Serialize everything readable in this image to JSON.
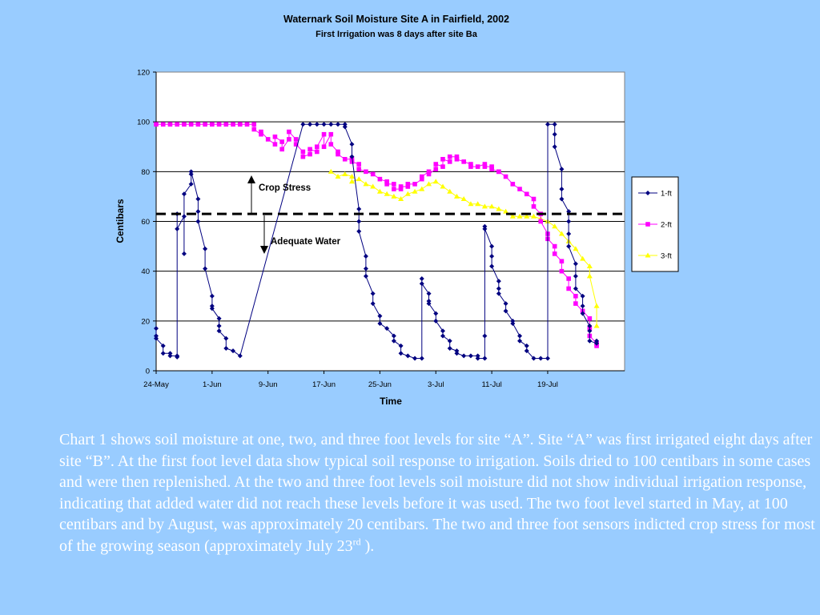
{
  "chart_data": {
    "type": "line",
    "title": "Waternark Soil Moisture Site A in Fairfield, 2002",
    "subtitle": "First Irrigation was 8 days after site Ba",
    "xlabel": "Time",
    "ylabel": "Centibars",
    "ylim": [
      0,
      120
    ],
    "yticks": [
      0,
      20,
      40,
      60,
      80,
      100,
      120
    ],
    "xlim": [
      "2002-05-24",
      "2002-07-30"
    ],
    "xticks": [
      {
        "date": "2002-05-24",
        "label": "24-May"
      },
      {
        "date": "2002-06-01",
        "label": "1-Jun"
      },
      {
        "date": "2002-06-09",
        "label": "9-Jun"
      },
      {
        "date": "2002-06-17",
        "label": "17-Jun"
      },
      {
        "date": "2002-06-25",
        "label": "25-Jun"
      },
      {
        "date": "2002-07-03",
        "label": "3-Jul"
      },
      {
        "date": "2002-07-11",
        "label": "11-Jul"
      },
      {
        "date": "2002-07-19",
        "label": "19-Jul"
      }
    ],
    "grid": true,
    "legend_position": "right",
    "threshold": {
      "y": 63,
      "style": "dashed"
    },
    "annotations": {
      "upper": "Crop Stress",
      "lower": "Adequate Water"
    },
    "series": [
      {
        "name": "1-ft",
        "color": "#000080",
        "marker": "diamond",
        "points": [
          [
            "2002-05-24",
            17
          ],
          [
            "2002-05-24",
            14
          ],
          [
            "2002-05-24",
            13
          ],
          [
            "2002-05-25",
            10
          ],
          [
            "2002-05-25",
            7
          ],
          [
            "2002-05-26",
            7
          ],
          [
            "2002-05-26",
            6
          ],
          [
            "2002-05-27",
            6
          ],
          [
            "2002-05-27",
            5.5
          ],
          [
            "2002-05-27",
            63
          ],
          [
            "2002-05-27",
            57
          ],
          [
            "2002-05-28",
            62
          ],
          [
            "2002-05-28",
            47
          ],
          [
            "2002-05-28",
            71
          ],
          [
            "2002-05-29",
            75
          ],
          [
            "2002-05-29",
            79
          ],
          [
            "2002-05-29",
            80
          ],
          [
            "2002-05-30",
            69
          ],
          [
            "2002-05-30",
            64
          ],
          [
            "2002-05-30",
            60
          ],
          [
            "2002-05-31",
            49
          ],
          [
            "2002-05-31",
            41
          ],
          [
            "2002-06-01",
            30
          ],
          [
            "2002-06-01",
            26
          ],
          [
            "2002-06-01",
            25
          ],
          [
            "2002-06-02",
            21
          ],
          [
            "2002-06-02",
            18
          ],
          [
            "2002-06-02",
            16
          ],
          [
            "2002-06-03",
            13
          ],
          [
            "2002-06-03",
            9
          ],
          [
            "2002-06-04",
            8
          ],
          [
            "2002-06-05",
            6
          ],
          [
            "2002-06-14",
            99
          ],
          [
            "2002-06-15",
            99
          ],
          [
            "2002-06-16",
            99
          ],
          [
            "2002-06-17",
            99
          ],
          [
            "2002-06-18",
            99
          ],
          [
            "2002-06-19",
            99
          ],
          [
            "2002-06-20",
            99
          ],
          [
            "2002-06-20",
            98
          ],
          [
            "2002-06-21",
            91
          ],
          [
            "2002-06-21",
            86
          ],
          [
            "2002-06-22",
            65
          ],
          [
            "2002-06-22",
            60
          ],
          [
            "2002-06-22",
            56
          ],
          [
            "2002-06-23",
            46
          ],
          [
            "2002-06-23",
            41
          ],
          [
            "2002-06-23",
            38
          ],
          [
            "2002-06-24",
            31
          ],
          [
            "2002-06-24",
            27
          ],
          [
            "2002-06-25",
            22
          ],
          [
            "2002-06-25",
            19
          ],
          [
            "2002-06-26",
            17
          ],
          [
            "2002-06-27",
            14
          ],
          [
            "2002-06-27",
            12
          ],
          [
            "2002-06-28",
            10
          ],
          [
            "2002-06-28",
            7
          ],
          [
            "2002-06-29",
            6
          ],
          [
            "2002-06-30",
            5
          ],
          [
            "2002-07-01",
            5
          ],
          [
            "2002-07-01",
            37
          ],
          [
            "2002-07-01",
            35
          ],
          [
            "2002-07-02",
            31
          ],
          [
            "2002-07-02",
            28
          ],
          [
            "2002-07-02",
            27
          ],
          [
            "2002-07-03",
            23
          ],
          [
            "2002-07-03",
            20
          ],
          [
            "2002-07-04",
            16
          ],
          [
            "2002-07-04",
            14
          ],
          [
            "2002-07-05",
            12
          ],
          [
            "2002-07-05",
            9
          ],
          [
            "2002-07-06",
            8
          ],
          [
            "2002-07-06",
            7
          ],
          [
            "2002-07-07",
            6
          ],
          [
            "2002-07-08",
            6
          ],
          [
            "2002-07-09",
            6
          ],
          [
            "2002-07-09",
            5
          ],
          [
            "2002-07-10",
            5
          ],
          [
            "2002-07-10",
            14
          ],
          [
            "2002-07-10",
            58
          ],
          [
            "2002-07-10",
            57
          ],
          [
            "2002-07-11",
            50
          ],
          [
            "2002-07-11",
            46
          ],
          [
            "2002-07-11",
            42
          ],
          [
            "2002-07-12",
            36
          ],
          [
            "2002-07-12",
            33
          ],
          [
            "2002-07-12",
            31
          ],
          [
            "2002-07-13",
            27
          ],
          [
            "2002-07-13",
            24
          ],
          [
            "2002-07-14",
            20
          ],
          [
            "2002-07-14",
            19
          ],
          [
            "2002-07-15",
            14
          ],
          [
            "2002-07-15",
            12
          ],
          [
            "2002-07-16",
            10
          ],
          [
            "2002-07-16",
            8
          ],
          [
            "2002-07-17",
            5
          ],
          [
            "2002-07-18",
            5
          ],
          [
            "2002-07-19",
            5
          ],
          [
            "2002-07-19",
            99
          ],
          [
            "2002-07-20",
            99
          ],
          [
            "2002-07-20",
            95
          ],
          [
            "2002-07-20",
            90
          ],
          [
            "2002-07-21",
            81
          ],
          [
            "2002-07-21",
            73
          ],
          [
            "2002-07-21",
            69
          ],
          [
            "2002-07-22",
            64
          ],
          [
            "2002-07-22",
            60
          ],
          [
            "2002-07-22",
            55
          ],
          [
            "2002-07-22",
            50
          ],
          [
            "2002-07-23",
            43
          ],
          [
            "2002-07-23",
            38
          ],
          [
            "2002-07-23",
            33
          ],
          [
            "2002-07-24",
            30
          ],
          [
            "2002-07-24",
            26
          ],
          [
            "2002-07-24",
            23
          ],
          [
            "2002-07-25",
            18
          ],
          [
            "2002-07-25",
            16
          ],
          [
            "2002-07-25",
            12
          ],
          [
            "2002-07-26",
            11
          ],
          [
            "2002-07-26",
            12
          ]
        ]
      },
      {
        "name": "2-ft",
        "color": "#ff00ff",
        "marker": "square",
        "points": [
          [
            "2002-05-24",
            99
          ],
          [
            "2002-05-25",
            99
          ],
          [
            "2002-05-26",
            99
          ],
          [
            "2002-05-27",
            99
          ],
          [
            "2002-05-28",
            99
          ],
          [
            "2002-05-29",
            99
          ],
          [
            "2002-05-30",
            99
          ],
          [
            "2002-05-31",
            99
          ],
          [
            "2002-06-01",
            99
          ],
          [
            "2002-06-02",
            99
          ],
          [
            "2002-06-03",
            99
          ],
          [
            "2002-06-04",
            99
          ],
          [
            "2002-06-05",
            99
          ],
          [
            "2002-06-06",
            99
          ],
          [
            "2002-06-07",
            99
          ],
          [
            "2002-06-07",
            97
          ],
          [
            "2002-06-08",
            95
          ],
          [
            "2002-06-08",
            96
          ],
          [
            "2002-06-09",
            93
          ],
          [
            "2002-06-10",
            91
          ],
          [
            "2002-06-10",
            94
          ],
          [
            "2002-06-11",
            92
          ],
          [
            "2002-06-11",
            89
          ],
          [
            "2002-06-12",
            93
          ],
          [
            "2002-06-12",
            96
          ],
          [
            "2002-06-13",
            93
          ],
          [
            "2002-06-13",
            91
          ],
          [
            "2002-06-14",
            88
          ],
          [
            "2002-06-14",
            86
          ],
          [
            "2002-06-15",
            87
          ],
          [
            "2002-06-15",
            89
          ],
          [
            "2002-06-16",
            88
          ],
          [
            "2002-06-16",
            90
          ],
          [
            "2002-06-17",
            95
          ],
          [
            "2002-06-17",
            90
          ],
          [
            "2002-06-18",
            95
          ],
          [
            "2002-06-18",
            91
          ],
          [
            "2002-06-19",
            88
          ],
          [
            "2002-06-19",
            87
          ],
          [
            "2002-06-20",
            85
          ],
          [
            "2002-06-21",
            85
          ],
          [
            "2002-06-21",
            84
          ],
          [
            "2002-06-22",
            83
          ],
          [
            "2002-06-22",
            81
          ],
          [
            "2002-06-23",
            80
          ],
          [
            "2002-06-24",
            79
          ],
          [
            "2002-06-25",
            77
          ],
          [
            "2002-06-26",
            76
          ],
          [
            "2002-06-26",
            75
          ],
          [
            "2002-06-27",
            75
          ],
          [
            "2002-06-27",
            73
          ],
          [
            "2002-06-28",
            73
          ],
          [
            "2002-06-28",
            74
          ],
          [
            "2002-06-29",
            74
          ],
          [
            "2002-06-29",
            75
          ],
          [
            "2002-06-30",
            75
          ],
          [
            "2002-07-01",
            77
          ],
          [
            "2002-07-01",
            78
          ],
          [
            "2002-07-02",
            80
          ],
          [
            "2002-07-02",
            79
          ],
          [
            "2002-07-03",
            81
          ],
          [
            "2002-07-03",
            83
          ],
          [
            "2002-07-04",
            82
          ],
          [
            "2002-07-04",
            85
          ],
          [
            "2002-07-05",
            84
          ],
          [
            "2002-07-05",
            86
          ],
          [
            "2002-07-06",
            86
          ],
          [
            "2002-07-06",
            85
          ],
          [
            "2002-07-07",
            84
          ],
          [
            "2002-07-08",
            83
          ],
          [
            "2002-07-08",
            82
          ],
          [
            "2002-07-09",
            82
          ],
          [
            "2002-07-10",
            83
          ],
          [
            "2002-07-10",
            82
          ],
          [
            "2002-07-11",
            82
          ],
          [
            "2002-07-11",
            81
          ],
          [
            "2002-07-12",
            80
          ],
          [
            "2002-07-12",
            80
          ],
          [
            "2002-07-13",
            78
          ],
          [
            "2002-07-14",
            75
          ],
          [
            "2002-07-15",
            73
          ],
          [
            "2002-07-16",
            71
          ],
          [
            "2002-07-17",
            69
          ],
          [
            "2002-07-17",
            66
          ],
          [
            "2002-07-18",
            63
          ],
          [
            "2002-07-18",
            60
          ],
          [
            "2002-07-19",
            55
          ],
          [
            "2002-07-19",
            53
          ],
          [
            "2002-07-20",
            50
          ],
          [
            "2002-07-20",
            47
          ],
          [
            "2002-07-21",
            44
          ],
          [
            "2002-07-21",
            40
          ],
          [
            "2002-07-22",
            37
          ],
          [
            "2002-07-22",
            33
          ],
          [
            "2002-07-23",
            30
          ],
          [
            "2002-07-23",
            27
          ],
          [
            "2002-07-24",
            24
          ],
          [
            "2002-07-25",
            21
          ],
          [
            "2002-07-25",
            17
          ],
          [
            "2002-07-25",
            14
          ],
          [
            "2002-07-26",
            11
          ],
          [
            "2002-07-26",
            10
          ]
        ]
      },
      {
        "name": "3-ft",
        "color": "#ffff00",
        "marker": "triangle",
        "points": [
          [
            "2002-06-18",
            80
          ],
          [
            "2002-06-19",
            78
          ],
          [
            "2002-06-20",
            79
          ],
          [
            "2002-06-21",
            78
          ],
          [
            "2002-06-21",
            76
          ],
          [
            "2002-06-22",
            77
          ],
          [
            "2002-06-23",
            75
          ],
          [
            "2002-06-24",
            74
          ],
          [
            "2002-06-25",
            72
          ],
          [
            "2002-06-26",
            71
          ],
          [
            "2002-06-27",
            70
          ],
          [
            "2002-06-28",
            69
          ],
          [
            "2002-06-29",
            71
          ],
          [
            "2002-06-30",
            72
          ],
          [
            "2002-07-01",
            73
          ],
          [
            "2002-07-02",
            75
          ],
          [
            "2002-07-03",
            76
          ],
          [
            "2002-07-04",
            74
          ],
          [
            "2002-07-05",
            72
          ],
          [
            "2002-07-06",
            70
          ],
          [
            "2002-07-07",
            69
          ],
          [
            "2002-07-08",
            67
          ],
          [
            "2002-07-09",
            67
          ],
          [
            "2002-07-10",
            66
          ],
          [
            "2002-07-11",
            66
          ],
          [
            "2002-07-12",
            65
          ],
          [
            "2002-07-13",
            64
          ],
          [
            "2002-07-14",
            62
          ],
          [
            "2002-07-15",
            62
          ],
          [
            "2002-07-16",
            62
          ],
          [
            "2002-07-17",
            62
          ],
          [
            "2002-07-18",
            61
          ],
          [
            "2002-07-19",
            60
          ],
          [
            "2002-07-20",
            58
          ],
          [
            "2002-07-21",
            55
          ],
          [
            "2002-07-22",
            52
          ],
          [
            "2002-07-23",
            49
          ],
          [
            "2002-07-24",
            45
          ],
          [
            "2002-07-25",
            42
          ],
          [
            "2002-07-25",
            38
          ],
          [
            "2002-07-26",
            26
          ],
          [
            "2002-07-26",
            18
          ]
        ]
      }
    ]
  },
  "caption": {
    "text": "Chart 1 shows soil moisture at one, two, and three foot levels for site “A”. Site “A” was first irrigated eight days after site “B”.  At the first foot level data show typical soil response to irrigation.  Soils dried to 100 centibars in some cases and were then replenished.  At the two and three foot levels soil moisture did not show individual irrigation response, indicating that added water did not reach these levels before it was used.  The two foot level started in May, at 100 centibars and by August, was approximately 20 centibars.  The two and three foot sensors indicted crop stress for most of the growing season (approximately July 23",
    "superscript": "rd",
    "tail": " )."
  }
}
